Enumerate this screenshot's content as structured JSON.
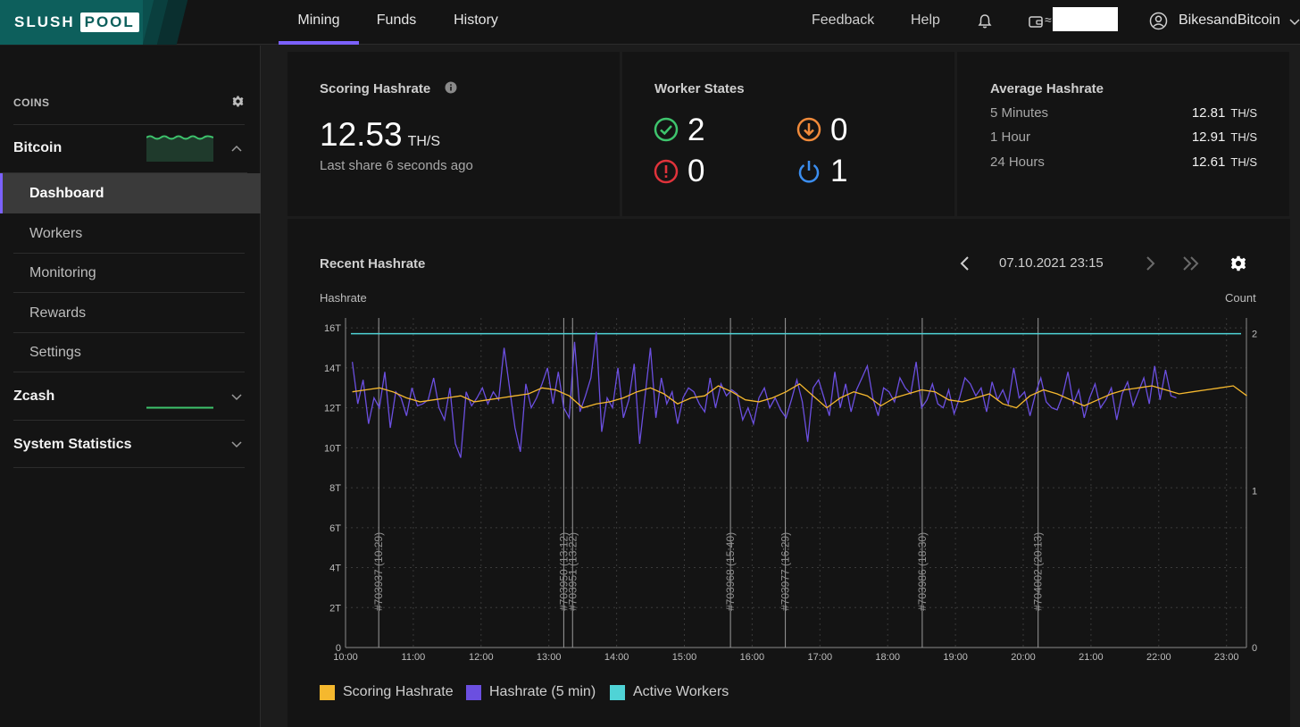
{
  "brand": {
    "part1": "SLUSH",
    "part2": "POOL"
  },
  "nav": [
    {
      "label": "Mining",
      "active": true
    },
    {
      "label": "Funds"
    },
    {
      "label": "History"
    }
  ],
  "header_right": {
    "feedback": "Feedback",
    "help": "Help",
    "approx": "≈",
    "user": "BikesandBitcoin"
  },
  "sidebar": {
    "coins_label": "COINS",
    "bitcoin": "Bitcoin",
    "items": [
      "Dashboard",
      "Workers",
      "Monitoring",
      "Rewards",
      "Settings"
    ],
    "zcash": "Zcash",
    "system": "System Statistics"
  },
  "scoring": {
    "title": "Scoring Hashrate",
    "value": "12.53",
    "unit": "TH/S",
    "last_share": "Last share 6 seconds ago"
  },
  "workers": {
    "title": "Worker States",
    "ok": "2",
    "low": "0",
    "error": "0",
    "off": "1"
  },
  "average": {
    "title": "Average Hashrate",
    "rows": [
      {
        "label": "5 Minutes",
        "value": "12.81",
        "unit": "TH/S"
      },
      {
        "label": "1 Hour",
        "value": "12.91",
        "unit": "TH/S"
      },
      {
        "label": "24 Hours",
        "value": "12.61",
        "unit": "TH/S"
      }
    ]
  },
  "recent": {
    "title": "Recent Hashrate",
    "date": "07.10.2021 23:15",
    "left_axis_title": "Hashrate",
    "right_axis_title": "Count"
  },
  "colors": {
    "accent": "#7b61ff",
    "scoring": "#f5b82e",
    "hashrate": "#6b4fe0",
    "workers": "#4fd3d6",
    "ok": "#3ec46d",
    "low": "#f08a3a",
    "error": "#e0333b",
    "off": "#3b8ef0"
  },
  "chart_data": {
    "type": "line",
    "x_ticks": [
      "10:00",
      "11:00",
      "12:00",
      "13:00",
      "14:00",
      "15:00",
      "16:00",
      "17:00",
      "18:00",
      "19:00",
      "20:00",
      "21:00",
      "22:00",
      "23:00"
    ],
    "y_ticks_left": [
      "0",
      "2T",
      "4T",
      "6T",
      "8T",
      "10T",
      "12T",
      "14T",
      "16T"
    ],
    "y_ticks_right": [
      "0",
      "1",
      "2"
    ],
    "xlim_hours": [
      10,
      23.35
    ],
    "ylim_left": [
      0,
      16.5
    ],
    "ylim_right": [
      0,
      2.1
    ],
    "blocks": [
      {
        "label": "#703937 (10:29)",
        "hour": 10.49
      },
      {
        "label": "#703950 (13:12)",
        "hour": 13.22
      },
      {
        "label": "#703951 (13:22)",
        "hour": 13.35
      },
      {
        "label": "#703968 (15:40)",
        "hour": 15.68
      },
      {
        "label": "#703977 (16:29)",
        "hour": 16.49
      },
      {
        "label": "#703986 (18:30)",
        "hour": 18.51
      },
      {
        "label": "#704002 (20:13)",
        "hour": 20.22
      }
    ],
    "series": [
      {
        "name": "Scoring Hashrate",
        "start_hour": 10.1,
        "step_hours": 0.2,
        "values": [
          12.8,
          12.9,
          13.0,
          12.8,
          12.5,
          12.3,
          12.4,
          12.5,
          12.6,
          12.3,
          12.4,
          12.5,
          12.6,
          12.7,
          13.0,
          12.9,
          12.6,
          12.0,
          12.2,
          12.3,
          12.5,
          12.8,
          13.0,
          12.7,
          12.2,
          12.5,
          12.6,
          13.1,
          12.8,
          12.4,
          12.3,
          12.5,
          12.8,
          13.2,
          12.6,
          12.0,
          12.5,
          12.8,
          12.6,
          12.1,
          12.5,
          12.7,
          12.9,
          12.8,
          12.4,
          12.3,
          12.5,
          12.7,
          12.2,
          12.0,
          12.6,
          12.9,
          12.7,
          12.4,
          12.1,
          12.4,
          12.7,
          12.9,
          13.0,
          13.1,
          12.9,
          12.7,
          12.8,
          12.9,
          13.0,
          13.1,
          12.6
        ]
      },
      {
        "name": "Hashrate (5 min)",
        "start_hour": 10.1,
        "step_hours": 0.1,
        "values": [
          14.3,
          12.2,
          13.4,
          11.2,
          12.5,
          12.0,
          13.8,
          11.0,
          12.8,
          12.5,
          11.6,
          13.0,
          12.1,
          12.2,
          12.4,
          13.5,
          12.0,
          11.4,
          13.0,
          10.2,
          9.5,
          12.8,
          12.1,
          12.5,
          13.0,
          12.2,
          12.8,
          12.4,
          15.0,
          13.0,
          11.0,
          9.8,
          13.2,
          12.0,
          12.5,
          13.2,
          14.0,
          12.2,
          13.8,
          12.0,
          11.5,
          15.3,
          11.8,
          12.6,
          13.5,
          15.8,
          10.8,
          12.5,
          12.0,
          14.0,
          11.5,
          12.4,
          14.2,
          10.2,
          12.6,
          15.0,
          11.5,
          13.5,
          12.2,
          12.8,
          11.2,
          12.5,
          13.0,
          12.8,
          12.2,
          11.8,
          13.5,
          12.0,
          13.2,
          12.6,
          12.9,
          12.7,
          11.4,
          12.0,
          11.2,
          12.5,
          13.0,
          12.0,
          12.5,
          11.9,
          11.5,
          12.4,
          13.4,
          12.3,
          10.3,
          13.0,
          13.4,
          12.5,
          11.6,
          13.8,
          12.0,
          13.2,
          11.8,
          12.9,
          13.5,
          14.1,
          12.5,
          11.6,
          13.0,
          12.8,
          12.3,
          13.5,
          13.0,
          12.7,
          14.3,
          12.0,
          12.4,
          13.2,
          12.2,
          12.0,
          12.9,
          11.7,
          12.5,
          13.5,
          13.2,
          12.6,
          13.0,
          11.8,
          13.3,
          12.4,
          12.9,
          12.2,
          14.0,
          12.5,
          12.8,
          11.6,
          12.7,
          13.5,
          12.3,
          12.0,
          11.9,
          12.6,
          13.8,
          12.2,
          12.9,
          11.5,
          12.5,
          13.2,
          12.0,
          12.4,
          13.0,
          11.4,
          12.7,
          13.3,
          12.1,
          12.8,
          13.5,
          12.2,
          14.1,
          12.4,
          13.9,
          12.6,
          12.5
        ]
      },
      {
        "name": "Active Workers",
        "values": [
          2
        ]
      }
    ]
  }
}
